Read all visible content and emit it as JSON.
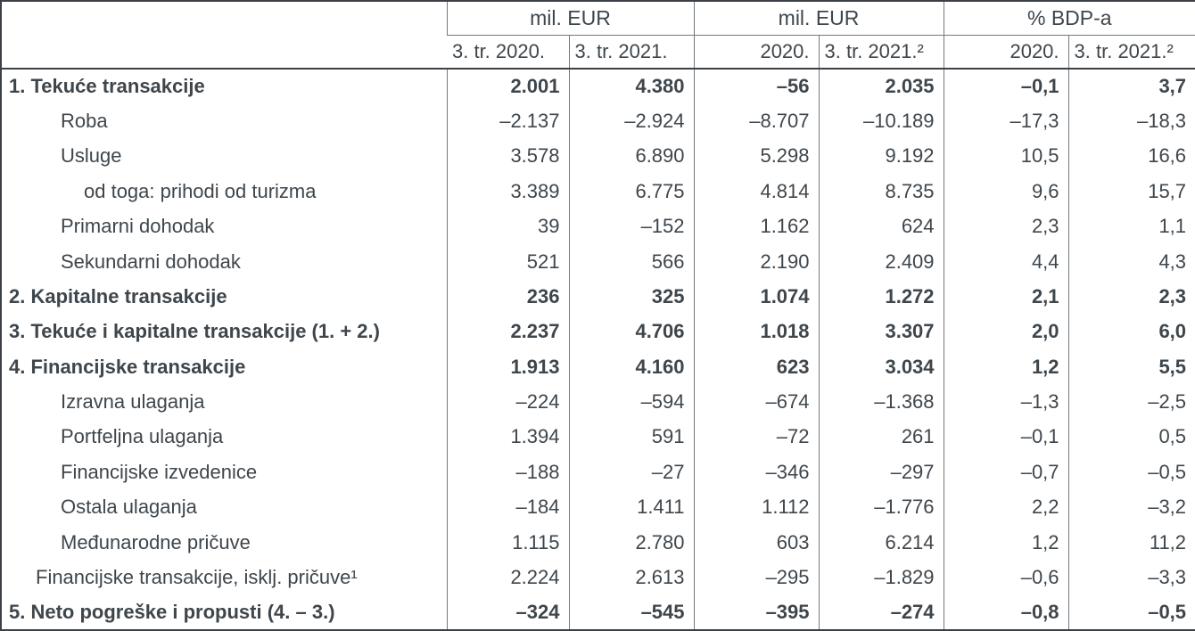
{
  "colors": {
    "text": "#3e464c",
    "inner_rule": "#73797e",
    "frame_rule": "#3b4146"
  },
  "table": {
    "column_groups": [
      {
        "label": "mil. EUR",
        "span": 2
      },
      {
        "label": "mil. EUR",
        "span": 2
      },
      {
        "label": "% BDP-a",
        "span": 2
      }
    ],
    "columns": [
      {
        "label": "3. tr. 2020.",
        "align": "left"
      },
      {
        "label": "3. tr. 2021.",
        "align": "left"
      },
      {
        "label": "2020.",
        "align": "right"
      },
      {
        "label": "3. tr. 2021.²",
        "align": "left"
      },
      {
        "label": "2020.",
        "align": "right"
      },
      {
        "label": "3. tr. 2021.²",
        "align": "left"
      }
    ],
    "rows": [
      {
        "label": "1. Tekuće transakcije",
        "bold": true,
        "indent": 0,
        "values": [
          "2.001",
          "4.380",
          "–56",
          "2.035",
          "–0,1",
          "3,7"
        ]
      },
      {
        "label": "Roba",
        "bold": false,
        "indent": 2,
        "values": [
          "–2.137",
          "–2.924",
          "–8.707",
          "–10.189",
          "–17,3",
          "–18,3"
        ]
      },
      {
        "label": "Usluge",
        "bold": false,
        "indent": 2,
        "values": [
          "3.578",
          "6.890",
          "5.298",
          "9.192",
          "10,5",
          "16,6"
        ]
      },
      {
        "label": "od toga: prihodi od turizma",
        "bold": false,
        "indent": 3,
        "values": [
          "3.389",
          "6.775",
          "4.814",
          "8.735",
          "9,6",
          "15,7"
        ]
      },
      {
        "label": "Primarni dohodak",
        "bold": false,
        "indent": 2,
        "values": [
          "39",
          "–152",
          "1.162",
          "624",
          "2,3",
          "1,1"
        ]
      },
      {
        "label": "Sekundarni dohodak",
        "bold": false,
        "indent": 2,
        "values": [
          "521",
          "566",
          "2.190",
          "2.409",
          "4,4",
          "4,3"
        ]
      },
      {
        "label": "2. Kapitalne transakcije",
        "bold": true,
        "indent": 0,
        "values": [
          "236",
          "325",
          "1.074",
          "1.272",
          "2,1",
          "2,3"
        ]
      },
      {
        "label": "3. Tekuće i kapitalne transakcije (1. + 2.)",
        "bold": true,
        "indent": 0,
        "values": [
          "2.237",
          "4.706",
          "1.018",
          "3.307",
          "2,0",
          "6,0"
        ]
      },
      {
        "label": "4. Financijske transakcije",
        "bold": true,
        "indent": 0,
        "values": [
          "1.913",
          "4.160",
          "623",
          "3.034",
          "1,2",
          "5,5"
        ]
      },
      {
        "label": "Izravna ulaganja",
        "bold": false,
        "indent": 2,
        "values": [
          "–224",
          "–594",
          "–674",
          "–1.368",
          "–1,3",
          "–2,5"
        ]
      },
      {
        "label": "Portfeljna ulaganja",
        "bold": false,
        "indent": 2,
        "values": [
          "1.394",
          "591",
          "–72",
          "261",
          "–0,1",
          "0,5"
        ]
      },
      {
        "label": "Financijske izvedenice",
        "bold": false,
        "indent": 2,
        "values": [
          "–188",
          "–27",
          "–346",
          "–297",
          "–0,7",
          "–0,5"
        ]
      },
      {
        "label": "Ostala ulaganja",
        "bold": false,
        "indent": 2,
        "values": [
          "–184",
          "1.411",
          "1.112",
          "–1.776",
          "2,2",
          "–3,2"
        ]
      },
      {
        "label": "Međunarodne pričuve",
        "bold": false,
        "indent": 2,
        "values": [
          "1.115",
          "2.780",
          "603",
          "6.214",
          "1,2",
          "11,2"
        ]
      },
      {
        "label": "Financijske transakcije, isklj. pričuve¹",
        "bold": false,
        "indent": 1,
        "values": [
          "2.224",
          "2.613",
          "–295",
          "–1.829",
          "–0,6",
          "–3,3"
        ]
      },
      {
        "label": "5. Neto pogreške i propusti (4. – 3.)",
        "bold": true,
        "indent": 0,
        "values": [
          "–324",
          "–545",
          "–395",
          "–274",
          "–0,8",
          "–0,5"
        ]
      }
    ]
  }
}
